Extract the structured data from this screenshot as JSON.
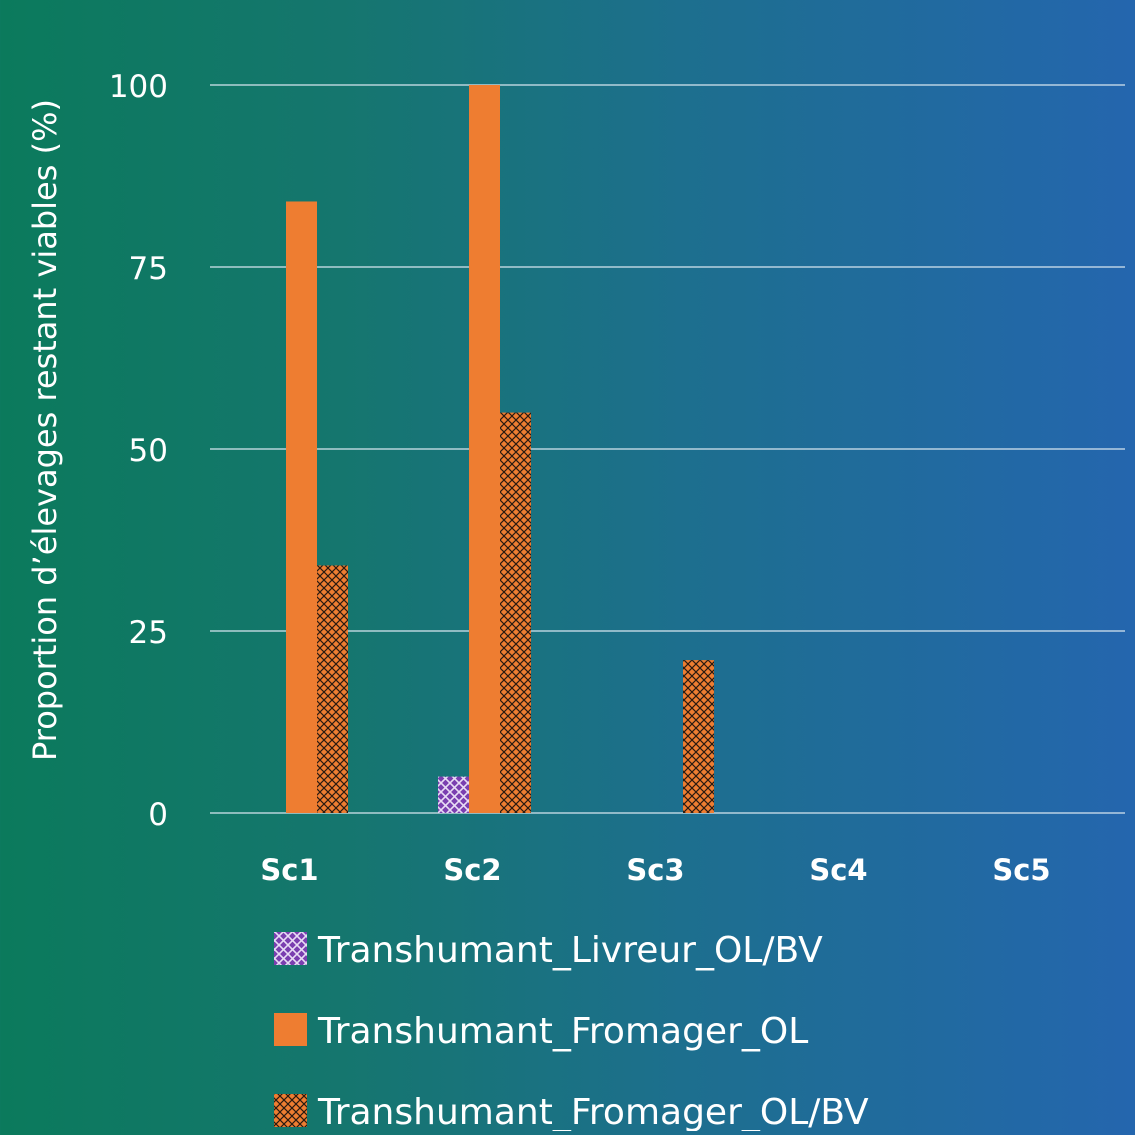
{
  "chart_data": {
    "type": "bar",
    "title": "",
    "xlabel": "",
    "ylabel": "Proportion d’élevages restant viables (%)",
    "ylim": [
      0,
      100
    ],
    "yticks": [
      0,
      25,
      50,
      75,
      100
    ],
    "ytick_labels": [
      "0",
      "25",
      "50",
      "75",
      "100"
    ],
    "grid": true,
    "legend_position": "bottom",
    "categories": [
      "Sc1",
      "Sc2",
      "Sc3",
      "Sc4",
      "Sc5"
    ],
    "series": [
      {
        "name": "Transhumant_Livreur_OL/BV",
        "values": [
          0,
          5,
          0,
          0,
          0
        ],
        "color": "#7a3fb0",
        "pattern": "crosshatch-light"
      },
      {
        "name": "Transhumant_Fromager_OL",
        "values": [
          84,
          100,
          0,
          0,
          0
        ],
        "color": "#ee7d31",
        "pattern": "solid"
      },
      {
        "name": "Transhumant_Fromager_OL/BV",
        "values": [
          34,
          55,
          21,
          0,
          0
        ],
        "color": "#ee7d31",
        "pattern": "crosshatch-dark"
      }
    ]
  }
}
